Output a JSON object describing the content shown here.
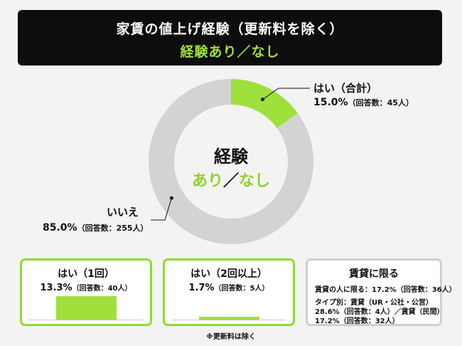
{
  "colors": {
    "accent": "#9fe03c",
    "ring_gray": "#d3d3d3",
    "title_bg": "#0d0d0d",
    "card_border_green": "#8fdc2c",
    "card_border_gray": "#cfcfcf"
  },
  "title": {
    "main": "家賃の値上げ経験（更新料を除く）",
    "sub": "経験あり／なし"
  },
  "center": {
    "line1": "経験",
    "line2_a": "あり",
    "line2_sep": "／",
    "line2_b": "なし"
  },
  "labels": {
    "yes": {
      "name": "はい（合計）",
      "value": "15.0%",
      "count": "（回答数：45人）"
    },
    "no": {
      "name": "いいえ",
      "value": "85.0%",
      "count": "（回答数：255人）"
    }
  },
  "cards": [
    {
      "title": "はい（1回）",
      "value": "13.3%",
      "count": "（回答数：40人）",
      "percent": 13.3
    },
    {
      "title": "はい（2回以上）",
      "value": "1.7%",
      "count": "（回答数：5人）",
      "percent": 1.7
    }
  ],
  "rent_box": {
    "title": "賃貸に限る",
    "lines": [
      "賃貸の人に限る：17.2%（回答数：36人）",
      "タイプ別：賃貸（UR・公社・公営）",
      "28.6%（回答数：4人）／賃貸（民間）",
      "17.2%（回答数：32人）"
    ]
  },
  "footnote": "※更新料は除く",
  "chart_data": {
    "type": "pie",
    "donut": true,
    "title": "家賃の値上げ経験（更新料を除く）",
    "slices": [
      {
        "label": "はい（合計）",
        "value": 15.0,
        "count": 45,
        "color": "#9fe03c"
      },
      {
        "label": "いいえ",
        "value": 85.0,
        "count": 255,
        "color": "#d3d3d3"
      }
    ],
    "breakdown": [
      {
        "label": "はい（1回）",
        "value": 13.3,
        "count": 40
      },
      {
        "label": "はい（2回以上）",
        "value": 1.7,
        "count": 5
      }
    ]
  }
}
